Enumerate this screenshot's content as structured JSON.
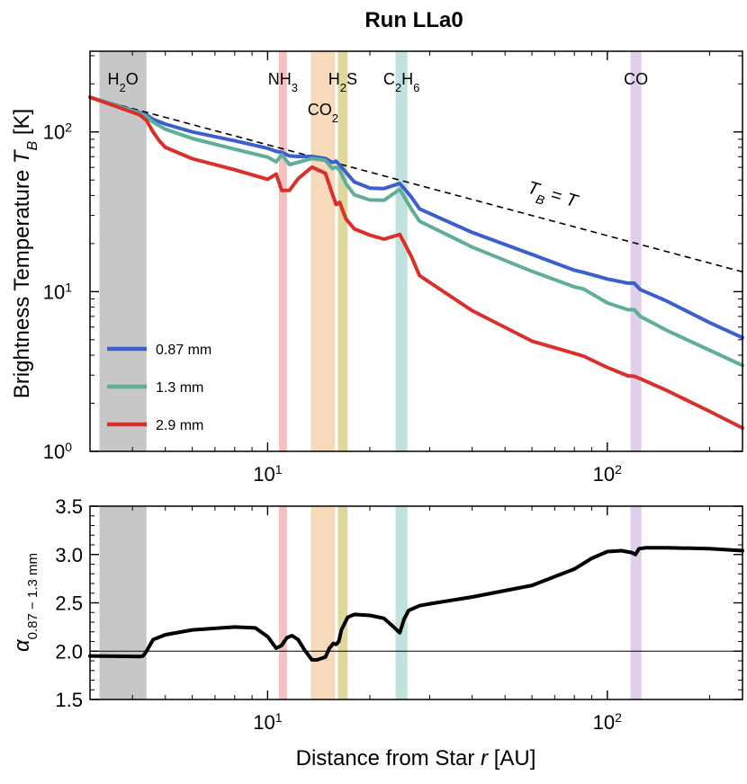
{
  "chart_data": [
    {
      "type": "line",
      "panel": "top",
      "title": "Run LLa0",
      "xlabel": "",
      "ylabel": "Brightness Temperature  T_B [K]",
      "xscale": "log",
      "yscale": "log",
      "xlim": [
        3.0,
        250
      ],
      "ylim": [
        1,
        320
      ],
      "yticks": [
        {
          "value": 1,
          "base": "10",
          "exp": "0"
        },
        {
          "value": 10,
          "base": "10",
          "exp": "1"
        },
        {
          "value": 100,
          "base": "10",
          "exp": "2"
        }
      ],
      "xticks": [
        {
          "value": 10,
          "base": "10",
          "exp": "1"
        },
        {
          "value": 100,
          "base": "10",
          "exp": "2"
        }
      ],
      "legend_position": "lower-left",
      "bands": [
        {
          "label": "H2O",
          "main": "H",
          "sub": "2",
          "rest": "O",
          "x0": 3.2,
          "x1": 4.4,
          "color": "#bdbdbd"
        },
        {
          "label": "NH3",
          "main": "NH",
          "sub": "3",
          "rest": "",
          "x0": 10.8,
          "x1": 11.4,
          "color": "#f2b6b6"
        },
        {
          "label": "CO2",
          "main": "CO",
          "sub": "2",
          "rest": "",
          "x0": 13.4,
          "x1": 15.8,
          "color": "#f6d2b0"
        },
        {
          "label": "H2S",
          "main": "H",
          "sub": "2",
          "rest": "S",
          "x0": 16.1,
          "x1": 17.2,
          "color": "#d9d08a"
        },
        {
          "label": "C2H6",
          "main": "C",
          "sub": "2",
          "rest": "H",
          "sub2": "6",
          "x0": 23.8,
          "x1": 25.8,
          "color": "#b6dcd6"
        },
        {
          "label": "CO",
          "main": "CO",
          "sub": "",
          "rest": "",
          "x0": 117,
          "x1": 126,
          "color": "#dcc6e6"
        }
      ],
      "reference_line": {
        "label": "T_B = T",
        "x": [
          3.0,
          250
        ],
        "y": [
          165,
          13.3
        ],
        "style": "dashed",
        "color": "#000000"
      },
      "series": [
        {
          "name": "0.87 mm",
          "color": "#3b5fcf",
          "x": [
            3.0,
            4.2,
            4.4,
            4.6,
            5.0,
            6.0,
            8.0,
            10.0,
            10.6,
            11.0,
            11.6,
            12.3,
            13.5,
            14.8,
            15.5,
            15.9,
            16.3,
            17.0,
            18.0,
            20.0,
            22.0,
            24.5,
            26.5,
            28.0,
            40.0,
            60.0,
            80.0,
            85.0,
            100.0,
            115.0,
            120.0,
            125.0,
            150.0,
            200.0,
            250.0
          ],
          "y": [
            165,
            132,
            128,
            120,
            112,
            100,
            88,
            79,
            75.5,
            74.5,
            70.8,
            70.1,
            70.2,
            68.2,
            64.5,
            65.6,
            62,
            56,
            48.6,
            44.5,
            44.2,
            47.6,
            39.1,
            33,
            23.5,
            17.1,
            13.6,
            13.2,
            12.0,
            11.3,
            11.3,
            10.3,
            8.7,
            6.4,
            5.15
          ]
        },
        {
          "name": "1.3 mm",
          "color": "#5fae97",
          "x": [
            3.0,
            4.2,
            4.4,
            4.6,
            5.0,
            6.0,
            8.0,
            10.0,
            10.6,
            11.0,
            11.6,
            12.3,
            13.5,
            14.8,
            15.5,
            15.9,
            16.3,
            17.0,
            18.0,
            20.0,
            22.0,
            24.5,
            26.5,
            28.0,
            40.0,
            60.0,
            80.0,
            85.0,
            100.0,
            115.0,
            120.0,
            125.0,
            150.0,
            200.0,
            250.0
          ],
          "y": [
            165,
            131,
            125,
            115,
            104,
            91,
            78,
            69.5,
            65,
            72,
            62.5,
            64.5,
            68.2,
            66.3,
            59,
            60.2,
            57.6,
            47.5,
            40.4,
            37.5,
            37.3,
            43.7,
            32.9,
            27.6,
            19.0,
            13.4,
            10.7,
            10.4,
            8.5,
            7.7,
            7.7,
            7.0,
            5.7,
            4.3,
            3.45
          ]
        },
        {
          "name": "2.9 mm",
          "color": "#d9302c",
          "x": [
            3.0,
            4.2,
            4.4,
            4.6,
            4.8,
            5.0,
            6.0,
            8.0,
            10.0,
            10.6,
            11.0,
            11.6,
            12.3,
            13.5,
            14.8,
            15.5,
            15.9,
            16.3,
            17.0,
            18.0,
            20.0,
            22.0,
            24.5,
            26.5,
            28.0,
            40.0,
            60.0,
            80.0,
            85.0,
            100.0,
            115.0,
            120.0,
            125.0,
            150.0,
            200.0,
            250.0
          ],
          "y": [
            165,
            128,
            118,
            100,
            88,
            80,
            68,
            58,
            50.5,
            54.5,
            43,
            43.1,
            51,
            60.2,
            55.1,
            41,
            35.1,
            36.2,
            28.6,
            24.7,
            22.6,
            21.3,
            22.8,
            16.6,
            12.6,
            7.6,
            4.9,
            4.1,
            3.95,
            3.35,
            2.97,
            2.95,
            2.85,
            2.4,
            1.78,
            1.4
          ]
        }
      ]
    },
    {
      "type": "line",
      "panel": "bottom",
      "title": "",
      "xlabel": "Distance from Star  r [AU]",
      "ylabel": "α 0.87−1.3 mm",
      "ylabel_main": "α",
      "ylabel_sub": "0.87 − 1.3 mm",
      "xscale": "log",
      "yscale": "linear",
      "xlim": [
        3.0,
        250
      ],
      "ylim": [
        1.5,
        3.5
      ],
      "yticks": [
        "1.5",
        "2.0",
        "2.5",
        "3.0",
        "3.5"
      ],
      "xticks": [
        {
          "value": 10,
          "base": "10",
          "exp": "1"
        },
        {
          "value": 100,
          "base": "10",
          "exp": "2"
        }
      ],
      "reference_line": {
        "y": 2.0,
        "color": "#000000"
      },
      "series": [
        {
          "name": "",
          "color": "#000000",
          "x": [
            3.0,
            4.2,
            4.3,
            4.4,
            4.6,
            5.0,
            6.0,
            8.0,
            9.2,
            10.0,
            10.6,
            11.0,
            11.4,
            11.8,
            12.3,
            12.8,
            13.5,
            14.0,
            14.8,
            15.2,
            15.6,
            15.9,
            16.2,
            16.5,
            17.2,
            18.0,
            20.0,
            22.0,
            23.5,
            24.5,
            25.2,
            26.0,
            28.0,
            30.0,
            40.0,
            60.0,
            80.0,
            90.0,
            100.0,
            110.0,
            118.0,
            121.0,
            124.0,
            130.0,
            150.0,
            200.0,
            250.0
          ],
          "y": [
            1.95,
            1.945,
            1.95,
            2.0,
            2.12,
            2.17,
            2.22,
            2.25,
            2.24,
            2.15,
            2.03,
            2.06,
            2.14,
            2.16,
            2.12,
            2.02,
            1.91,
            1.91,
            1.94,
            2.03,
            2.08,
            2.07,
            2.1,
            2.22,
            2.35,
            2.38,
            2.37,
            2.34,
            2.25,
            2.19,
            2.33,
            2.42,
            2.47,
            2.49,
            2.56,
            2.68,
            2.85,
            2.96,
            3.03,
            3.04,
            3.02,
            3.0,
            3.06,
            3.07,
            3.07,
            3.06,
            3.04
          ]
        }
      ]
    }
  ]
}
